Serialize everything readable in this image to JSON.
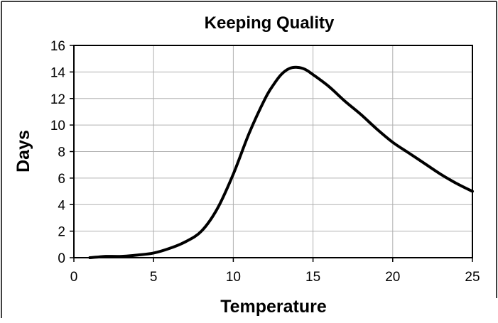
{
  "chart_data": {
    "type": "line",
    "title": "Keeping Quality",
    "xlabel": "Temperature",
    "ylabel": "Days",
    "xlim": [
      0,
      25
    ],
    "ylim": [
      0,
      16
    ],
    "xticks": [
      "0",
      "5",
      "10",
      "15",
      "20",
      "25"
    ],
    "yticks": [
      "0",
      "2",
      "4",
      "6",
      "8",
      "10",
      "12",
      "14",
      "16"
    ],
    "grid": true,
    "legend": "none",
    "line_color": "#000000",
    "series": [
      {
        "x": [
          1,
          1.5,
          2,
          3,
          4,
          5,
          6,
          7,
          8,
          9,
          10,
          11,
          12,
          12.5,
          13,
          13.5,
          14,
          14.5,
          15,
          16,
          17,
          18,
          19,
          20,
          21,
          22,
          23,
          24,
          25
        ],
        "y": [
          0,
          0.05,
          0.1,
          0.1,
          0.2,
          0.35,
          0.7,
          1.2,
          2.0,
          3.7,
          6.3,
          9.4,
          12.0,
          13.0,
          13.8,
          14.25,
          14.35,
          14.2,
          13.8,
          12.9,
          11.8,
          10.8,
          9.7,
          8.7,
          7.9,
          7.1,
          6.3,
          5.6,
          5.0
        ]
      }
    ]
  }
}
